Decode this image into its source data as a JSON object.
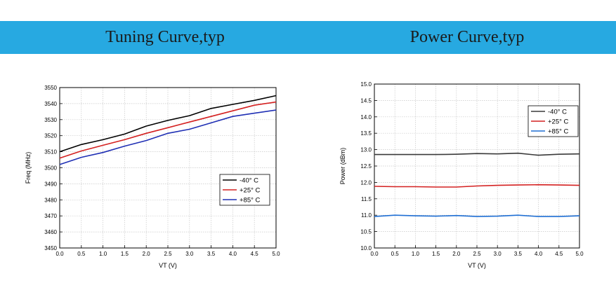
{
  "banner": {
    "left_title": "Tuning Curve,typ",
    "right_title": "Power Curve,typ",
    "color": "#27a9e1"
  },
  "chart_data": [
    {
      "type": "line",
      "xlabel": "VT (V)",
      "ylabel": "Freq (MHz)",
      "xlim": [
        0.0,
        5.0
      ],
      "ylim": [
        3450,
        3550
      ],
      "xticks": [
        "0.0",
        "0.5",
        "1.0",
        "1.5",
        "2.0",
        "2.5",
        "3.0",
        "3.5",
        "4.0",
        "4.5",
        "5.0"
      ],
      "yticks": [
        "3450",
        "3460",
        "3470",
        "3480",
        "3490",
        "3500",
        "3510",
        "3520",
        "3530",
        "3540",
        "3550"
      ],
      "grid": true,
      "legend_position": "bottom-right",
      "x": [
        0.0,
        0.5,
        1.0,
        1.5,
        2.0,
        2.5,
        3.0,
        3.5,
        4.0,
        4.5,
        5.0
      ],
      "series": [
        {
          "name": "-40° C",
          "color": "#000000",
          "values": [
            3510,
            3514.5,
            3517.5,
            3521,
            3526,
            3529.5,
            3532.5,
            3537,
            3539.5,
            3542,
            3545
          ]
        },
        {
          "name": "+25° C",
          "color": "#d42020",
          "values": [
            3506,
            3510.5,
            3514,
            3517.5,
            3521.5,
            3525,
            3528.5,
            3532,
            3535.5,
            3539,
            3541
          ]
        },
        {
          "name": "+85° C",
          "color": "#1f2fb4",
          "values": [
            3502,
            3506.5,
            3509.5,
            3513.5,
            3517,
            3521.5,
            3524,
            3528,
            3532,
            3534,
            3536
          ]
        }
      ]
    },
    {
      "type": "line",
      "xlabel": "VT (V)",
      "ylabel": "Power (dBm)",
      "xlim": [
        0.0,
        5.0
      ],
      "ylim": [
        10.0,
        15.0
      ],
      "xticks": [
        "0.0",
        "0.5",
        "1.0",
        "1.5",
        "2.0",
        "2.5",
        "3.0",
        "3.5",
        "4.0",
        "4.5",
        "5.0"
      ],
      "yticks": [
        "10.0",
        "10.5",
        "11.0",
        "11.5",
        "12.0",
        "12.5",
        "13.0",
        "13.5",
        "14.0",
        "14.5",
        "15.0"
      ],
      "grid": true,
      "legend_position": "top-right",
      "x": [
        0.0,
        0.5,
        1.0,
        1.5,
        2.0,
        2.5,
        3.0,
        3.5,
        4.0,
        4.5,
        5.0
      ],
      "series": [
        {
          "name": "-40° C",
          "color": "#3a3a3a",
          "values": [
            12.85,
            12.85,
            12.85,
            12.85,
            12.86,
            12.88,
            12.87,
            12.89,
            12.83,
            12.86,
            12.87
          ]
        },
        {
          "name": "+25° C",
          "color": "#d42020",
          "values": [
            11.88,
            11.87,
            11.87,
            11.86,
            11.86,
            11.89,
            11.91,
            11.92,
            11.93,
            11.92,
            11.91
          ]
        },
        {
          "name": "+85° C",
          "color": "#1f6fd4",
          "values": [
            10.96,
            11.0,
            10.98,
            10.97,
            10.99,
            10.96,
            10.97,
            11.0,
            10.96,
            10.96,
            10.98
          ]
        }
      ]
    }
  ]
}
